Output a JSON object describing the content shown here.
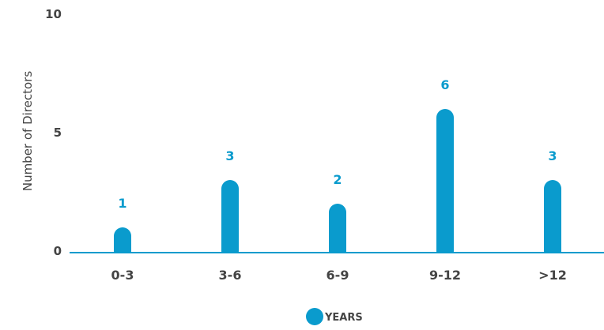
{
  "chart_data": {
    "type": "bar",
    "categories": [
      "0-3",
      "3-6",
      "6-9",
      "9-12",
      ">12"
    ],
    "series": [
      {
        "name": "YEARS",
        "values": [
          1,
          3,
          2,
          6,
          3
        ]
      }
    ],
    "ylabel": "Number of Directors",
    "xlabel": "",
    "ylim": [
      0,
      10
    ],
    "yticks": [
      0,
      5,
      10
    ],
    "grid": false,
    "legend": "bottom-center",
    "data_labels": true
  },
  "colors": {
    "bar": "#0a9bcd",
    "value_label": "#0a9bcd",
    "axis": "#0a9bcd",
    "text": "#444444"
  }
}
